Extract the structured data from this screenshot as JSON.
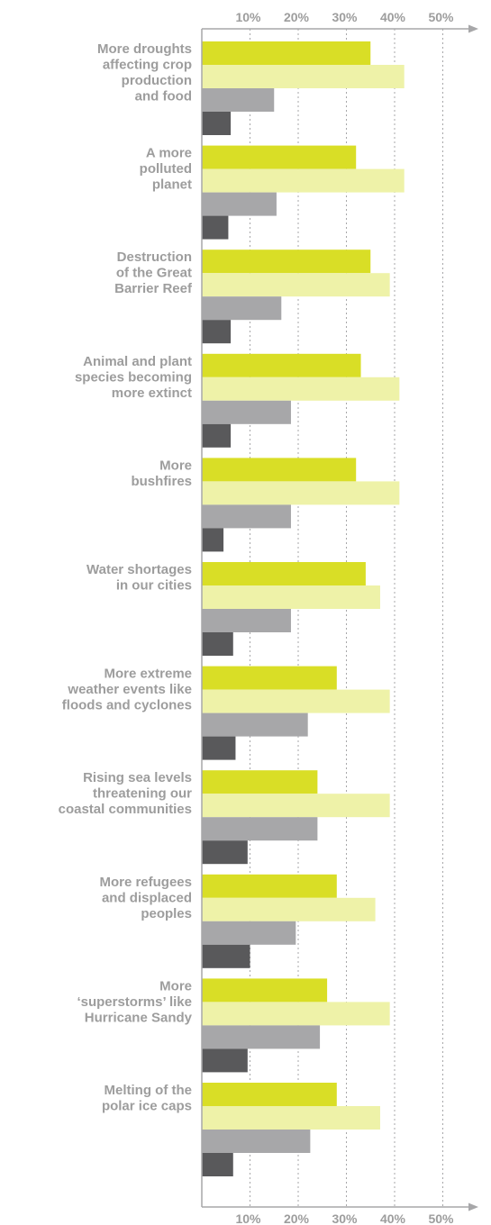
{
  "chart_data": {
    "type": "bar",
    "orientation": "horizontal",
    "categories": [
      [
        "More droughts",
        "affecting crop",
        "production",
        "and food"
      ],
      [
        "A more",
        "polluted",
        "planet"
      ],
      [
        "Destruction",
        "of the Great",
        "Barrier Reef"
      ],
      [
        "Animal and plant",
        "species becoming",
        "more extinct"
      ],
      [
        "More",
        "bushfires"
      ],
      [
        "Water shortages",
        "in our cities"
      ],
      [
        "More extreme",
        "weather events like",
        "floods and cyclones"
      ],
      [
        "Rising sea levels",
        "threatening our",
        "coastal communities"
      ],
      [
        "More refugees",
        "and displaced",
        "peoples"
      ],
      [
        "More",
        "‘superstorms’ like",
        "Hurricane Sandy"
      ],
      [
        "Melting of the",
        "polar ice caps"
      ]
    ],
    "series": [
      {
        "color": "#d9de26",
        "values": [
          35,
          32,
          35,
          33,
          32,
          34,
          28,
          24,
          28,
          26,
          28
        ]
      },
      {
        "color": "#eef2a8",
        "values": [
          42,
          42,
          39,
          41,
          41,
          37,
          39,
          39,
          36,
          39,
          37
        ]
      },
      {
        "color": "#a7a7a9",
        "values": [
          15,
          15.5,
          16.5,
          18.5,
          18.5,
          18.5,
          22,
          24,
          19.5,
          24.5,
          22.5
        ]
      },
      {
        "color": "#59595b",
        "values": [
          6,
          5.5,
          6,
          6,
          4.5,
          6.5,
          7,
          9.5,
          10,
          9.5,
          6.5
        ]
      }
    ],
    "x_ticks": [
      "10%",
      "20%",
      "30%",
      "40%",
      "50%"
    ],
    "x_tick_values": [
      10,
      20,
      30,
      40,
      50
    ],
    "xlim": [
      0,
      54
    ],
    "ylabel": "",
    "xlabel": "",
    "grid": true,
    "gridline_style": "dotted",
    "axis_color": "#a7a7a9",
    "label_color": "#9d9d9d"
  }
}
